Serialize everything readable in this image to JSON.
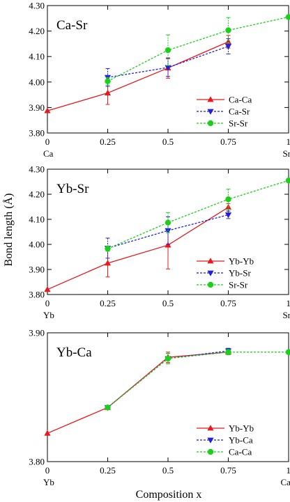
{
  "figure": {
    "ylabel": "Bond length (Å)",
    "xlabel": "Composition x"
  },
  "chart_data": [
    {
      "type": "line",
      "title": "Ca-Sr",
      "ylim": [
        3.8,
        4.3
      ],
      "yticks": [
        "3.80",
        "3.90",
        "4.00",
        "4.10",
        "4.20",
        "4.30"
      ],
      "xlim": [
        0,
        1
      ],
      "xticks": [
        "0",
        "0.25",
        "0.5",
        "0.75",
        "1"
      ],
      "end_labels": [
        "Ca",
        "Sr"
      ],
      "legend_position": "bottom-right",
      "series": [
        {
          "name": "Ca-Ca",
          "color": "#e8181c",
          "marker": "triangle-up",
          "dash": "",
          "x": [
            0,
            0.25,
            0.5,
            0.75
          ],
          "y": [
            3.887,
            3.957,
            4.055,
            4.158
          ],
          "err": [
            0,
            0.045,
            0.04,
            0.025
          ]
        },
        {
          "name": "Ca-Sr",
          "color": "#1f1fe0",
          "marker": "triangle-down",
          "dash": "3,2",
          "x": [
            0.25,
            0.5,
            0.75
          ],
          "y": [
            4.018,
            4.057,
            4.14
          ],
          "err": [
            0.035,
            0.035,
            0.03
          ]
        },
        {
          "name": "Sr-Sr",
          "color": "#1ad01a",
          "marker": "circle",
          "dash": "3,2",
          "x": [
            0.25,
            0.5,
            0.75,
            1
          ],
          "y": [
            4.003,
            4.125,
            4.203,
            4.255
          ],
          "err": [
            0.015,
            0.06,
            0.05,
            0
          ]
        }
      ]
    },
    {
      "type": "line",
      "title": "Yb-Sr",
      "ylim": [
        3.8,
        4.3
      ],
      "yticks": [
        "3.80",
        "3.90",
        "4.00",
        "4.10",
        "4.20",
        "4.30"
      ],
      "xlim": [
        0,
        1
      ],
      "xticks": [
        "0",
        "0.25",
        "0.5",
        "0.75",
        "1"
      ],
      "end_labels": [
        "Yb",
        "Sr"
      ],
      "legend_position": "bottom-right",
      "series": [
        {
          "name": "Yb-Yb",
          "color": "#e8181c",
          "marker": "triangle-up",
          "dash": "",
          "x": [
            0,
            0.25,
            0.5,
            0.75
          ],
          "y": [
            3.82,
            3.925,
            3.997,
            4.148
          ],
          "err": [
            0,
            0.055,
            0.095,
            0.015
          ]
        },
        {
          "name": "Yb-Sr",
          "color": "#1f1fe0",
          "marker": "triangle-down",
          "dash": "3,2",
          "x": [
            0.25,
            0.5,
            0.75
          ],
          "y": [
            3.985,
            4.055,
            4.118
          ],
          "err": [
            0.04,
            0.055,
            0.015
          ]
        },
        {
          "name": "Sr-Sr",
          "color": "#1ad01a",
          "marker": "circle",
          "dash": "3,2",
          "x": [
            0.25,
            0.5,
            0.75,
            1
          ],
          "y": [
            3.983,
            4.087,
            4.18,
            4.255
          ],
          "err": [
            0.01,
            0.04,
            0.04,
            0
          ]
        }
      ]
    },
    {
      "type": "line",
      "title": "Yb-Ca",
      "ylim": [
        3.8,
        3.9
      ],
      "yticks": [
        "3.80",
        "3.90"
      ],
      "xlim": [
        0,
        1
      ],
      "xticks": [
        "0",
        "0.25",
        "0.5",
        "0.75",
        "1"
      ],
      "end_labels": [
        "Yb",
        "Ca"
      ],
      "legend_position": "bottom-right",
      "series": [
        {
          "name": "Yb-Yb",
          "color": "#e8181c",
          "marker": "triangle-up",
          "dash": "",
          "x": [
            0,
            0.25,
            0.5,
            0.75
          ],
          "y": [
            3.822,
            3.842,
            3.881,
            3.885
          ],
          "err": [
            0,
            0,
            0.004,
            0.002
          ]
        },
        {
          "name": "Yb-Ca",
          "color": "#1f1fe0",
          "marker": "triangle-down",
          "dash": "3,2",
          "x": [
            0.25,
            0.5,
            0.75
          ],
          "y": [
            3.842,
            3.88,
            3.886
          ],
          "err": [
            0,
            0.004,
            0.002
          ]
        },
        {
          "name": "Ca-Ca",
          "color": "#1ad01a",
          "marker": "circle",
          "dash": "3,2",
          "x": [
            0.25,
            0.5,
            0.75,
            1
          ],
          "y": [
            3.842,
            3.88,
            3.885,
            3.885
          ],
          "err": [
            0,
            0.004,
            0.002,
            0
          ]
        }
      ]
    }
  ]
}
